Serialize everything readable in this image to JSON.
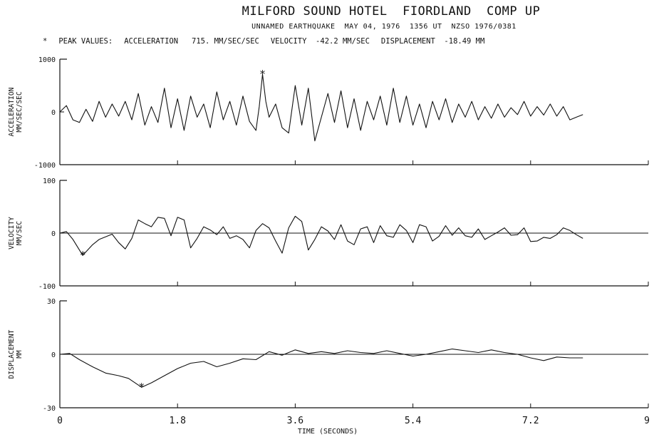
{
  "chart_data": {
    "type": "line",
    "title": "MILFORD SOUND HOTEL  FIORDLAND  COMP UP",
    "subtitle": "UNNAMED EARTHQUAKE  MAY 04, 1976  1356 UT  NZSO 1976/0381",
    "peak_values": {
      "label": "PEAK VALUES:",
      "acceleration": "ACCELERATION   715. MM/SEC/SEC",
      "velocity": "VELOCITY  -42.2 MM/SEC",
      "displacement": "DISPLACEMENT  -18.49 MM"
    },
    "xlabel": "TIME (SECONDS)",
    "xlim": [
      0,
      9
    ],
    "x_ticks": [
      "0",
      "1.8",
      "3.6",
      "5.4",
      "7.2",
      "9"
    ],
    "panels": [
      {
        "name": "acceleration",
        "ylabel": [
          "ACCELERATION",
          "MM/SEC/SEC"
        ],
        "ylim": [
          -1000,
          1000
        ],
        "y_ticks": [
          "1000",
          "0",
          "-1000"
        ],
        "zero_line": false,
        "peak": {
          "x": 3.1,
          "y": 715
        },
        "x": [
          0,
          0.1,
          0.2,
          0.3,
          0.4,
          0.5,
          0.6,
          0.7,
          0.8,
          0.9,
          1.0,
          1.1,
          1.2,
          1.3,
          1.4,
          1.5,
          1.6,
          1.7,
          1.8,
          1.9,
          2.0,
          2.1,
          2.2,
          2.3,
          2.4,
          2.5,
          2.6,
          2.7,
          2.8,
          2.9,
          3.0,
          3.05,
          3.1,
          3.15,
          3.2,
          3.3,
          3.4,
          3.5,
          3.6,
          3.7,
          3.8,
          3.9,
          4.0,
          4.1,
          4.2,
          4.3,
          4.4,
          4.5,
          4.6,
          4.7,
          4.8,
          4.9,
          5.0,
          5.1,
          5.2,
          5.3,
          5.4,
          5.5,
          5.6,
          5.7,
          5.8,
          5.9,
          6.0,
          6.1,
          6.2,
          6.3,
          6.4,
          6.5,
          6.6,
          6.7,
          6.8,
          6.9,
          7.0,
          7.1,
          7.2,
          7.3,
          7.4,
          7.5,
          7.6,
          7.7,
          7.8,
          7.9,
          8.0
        ],
        "y": [
          0,
          120,
          -150,
          -200,
          50,
          -180,
          200,
          -100,
          150,
          -80,
          200,
          -150,
          350,
          -250,
          100,
          -200,
          450,
          -300,
          250,
          -350,
          300,
          -100,
          150,
          -300,
          380,
          -150,
          200,
          -250,
          300,
          -180,
          -350,
          100,
          715,
          200,
          -100,
          150,
          -300,
          -400,
          500,
          -250,
          450,
          -550,
          -100,
          350,
          -200,
          400,
          -300,
          250,
          -350,
          200,
          -150,
          300,
          -250,
          450,
          -200,
          300,
          -250,
          150,
          -300,
          200,
          -150,
          250,
          -200,
          150,
          -100,
          200,
          -150,
          100,
          -120,
          150,
          -100,
          80,
          -50,
          200,
          -80,
          100,
          -60,
          150,
          -80,
          100,
          -150,
          -100,
          -50
        ]
      },
      {
        "name": "velocity",
        "ylabel": [
          "VELOCITY",
          "MM/SEC"
        ],
        "ylim": [
          -100,
          100
        ],
        "y_ticks": [
          "100",
          "0",
          "-100"
        ],
        "zero_line": true,
        "peak": {
          "x": 0.35,
          "y": -42.2
        },
        "x": [
          0,
          0.1,
          0.2,
          0.35,
          0.5,
          0.6,
          0.8,
          0.9,
          1.0,
          1.1,
          1.2,
          1.3,
          1.4,
          1.5,
          1.6,
          1.7,
          1.8,
          1.9,
          2.0,
          2.1,
          2.2,
          2.3,
          2.4,
          2.5,
          2.6,
          2.7,
          2.8,
          2.9,
          3.0,
          3.1,
          3.2,
          3.3,
          3.4,
          3.5,
          3.6,
          3.7,
          3.8,
          3.9,
          4.0,
          4.1,
          4.2,
          4.3,
          4.4,
          4.5,
          4.6,
          4.7,
          4.8,
          4.9,
          5.0,
          5.1,
          5.2,
          5.3,
          5.4,
          5.5,
          5.6,
          5.7,
          5.8,
          5.9,
          6.0,
          6.1,
          6.2,
          6.3,
          6.4,
          6.5,
          6.6,
          6.7,
          6.8,
          6.9,
          7.0,
          7.1,
          7.2,
          7.3,
          7.4,
          7.5,
          7.6,
          7.7,
          7.8,
          7.9,
          8.0
        ],
        "y": [
          0,
          3,
          -12,
          -42.2,
          -22,
          -12,
          -2,
          -18,
          -30,
          -10,
          25,
          18,
          12,
          30,
          28,
          -5,
          30,
          25,
          -28,
          -10,
          12,
          6,
          -3,
          12,
          -10,
          -5,
          -12,
          -28,
          5,
          18,
          10,
          -15,
          -38,
          10,
          32,
          22,
          -32,
          -12,
          12,
          4,
          -12,
          16,
          -15,
          -22,
          8,
          12,
          -18,
          14,
          -5,
          -8,
          16,
          5,
          -18,
          16,
          12,
          -15,
          -6,
          14,
          -4,
          10,
          -5,
          -8,
          8,
          -12,
          -5,
          2,
          10,
          -4,
          -3,
          10,
          -16,
          -15,
          -8,
          -10,
          -3,
          10,
          5,
          -3,
          -10
        ]
      },
      {
        "name": "displacement",
        "ylabel": [
          "DISPLACEMENT",
          "MM"
        ],
        "ylim": [
          -30,
          30
        ],
        "y_ticks": [
          "30",
          "0",
          "-30"
        ],
        "zero_line": true,
        "peak": {
          "x": 1.25,
          "y": -18.49
        },
        "x": [
          0,
          0.15,
          0.3,
          0.5,
          0.7,
          0.9,
          1.05,
          1.25,
          1.4,
          1.6,
          1.8,
          2.0,
          2.2,
          2.4,
          2.6,
          2.8,
          3.0,
          3.2,
          3.4,
          3.6,
          3.8,
          4.0,
          4.2,
          4.4,
          4.6,
          4.8,
          5.0,
          5.2,
          5.4,
          5.6,
          5.8,
          6.0,
          6.2,
          6.4,
          6.6,
          6.8,
          7.0,
          7.2,
          7.4,
          7.6,
          7.8,
          8.0
        ],
        "y": [
          0,
          0.5,
          -3,
          -7,
          -10.5,
          -12,
          -13.5,
          -18.49,
          -16,
          -12,
          -8,
          -5,
          -4,
          -7,
          -5,
          -2.5,
          -3,
          1.5,
          -0.5,
          2.5,
          0.5,
          1.5,
          0.5,
          2,
          1,
          0.5,
          2,
          0.5,
          -1,
          0,
          1.5,
          3,
          2,
          1,
          2.5,
          1,
          0,
          -2,
          -3.5,
          -1.5,
          -2,
          -2
        ]
      }
    ]
  }
}
